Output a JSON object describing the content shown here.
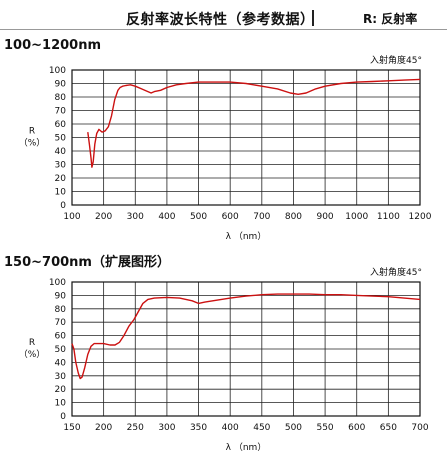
{
  "header": {
    "title": "反射率波长特性（参考数据）",
    "note": "R: 反射率"
  },
  "chart_data": [
    {
      "type": "line",
      "title": "100~1200nm",
      "annotation": "入射角度45°",
      "xlabel": "λ （nm）",
      "ylabel": "R（%）",
      "xlim": [
        100,
        1200
      ],
      "ylim": [
        0,
        100
      ],
      "xticks": [
        100,
        200,
        300,
        400,
        500,
        600,
        700,
        800,
        900,
        1000,
        1100,
        1200
      ],
      "yticks": [
        0,
        10,
        20,
        30,
        40,
        50,
        60,
        70,
        80,
        90,
        100
      ],
      "grid": true,
      "line_color": "#cc1111",
      "series": [
        {
          "x": [
            150,
            155,
            160,
            163,
            167,
            172,
            178,
            185,
            195,
            205,
            215,
            225,
            235,
            245,
            252,
            260,
            270,
            285,
            300,
            320,
            340,
            350,
            360,
            380,
            400,
            430,
            460,
            500,
            550,
            600,
            650,
            700,
            750,
            790,
            815,
            840,
            870,
            900,
            950,
            1000,
            1050,
            1100,
            1150,
            1200
          ],
          "y": [
            54,
            45,
            35,
            28,
            32,
            45,
            53,
            56,
            54,
            55,
            58,
            66,
            78,
            85,
            87,
            88,
            88.5,
            89,
            88,
            86,
            84,
            83,
            84,
            85,
            87,
            89,
            90,
            91,
            91,
            91,
            90,
            88,
            86,
            83,
            82,
            83,
            86,
            88,
            90,
            91,
            91.5,
            92,
            92.5,
            93
          ]
        }
      ]
    },
    {
      "type": "line",
      "title": "150~700nm（扩展图形）",
      "annotation": "入射角度45°",
      "xlabel": "λ （nm）",
      "ylabel": "R（%）",
      "xlim": [
        150,
        700
      ],
      "ylim": [
        0,
        100
      ],
      "xticks": [
        150,
        200,
        250,
        300,
        350,
        400,
        450,
        500,
        550,
        600,
        650,
        700
      ],
      "yticks": [
        0,
        10,
        20,
        30,
        40,
        50,
        60,
        70,
        80,
        90,
        100
      ],
      "grid": true,
      "line_color": "#cc1111",
      "series": [
        {
          "x": [
            150,
            153,
            156,
            160,
            163,
            166,
            170,
            175,
            180,
            185,
            192,
            200,
            210,
            218,
            225,
            232,
            240,
            248,
            255,
            262,
            270,
            280,
            300,
            320,
            340,
            350,
            360,
            380,
            400,
            425,
            450,
            475,
            500,
            525,
            550,
            575,
            600,
            625,
            650,
            675,
            700
          ],
          "y": [
            54,
            50,
            40,
            32,
            28,
            29,
            36,
            46,
            52,
            54,
            54,
            54,
            53,
            53,
            55,
            60,
            67,
            72,
            78,
            84,
            87,
            88,
            88.5,
            88,
            86,
            84,
            85,
            86.5,
            88,
            89.5,
            90.5,
            91,
            91,
            91,
            90.5,
            90.5,
            90,
            89.5,
            89,
            88,
            87
          ]
        }
      ]
    }
  ]
}
